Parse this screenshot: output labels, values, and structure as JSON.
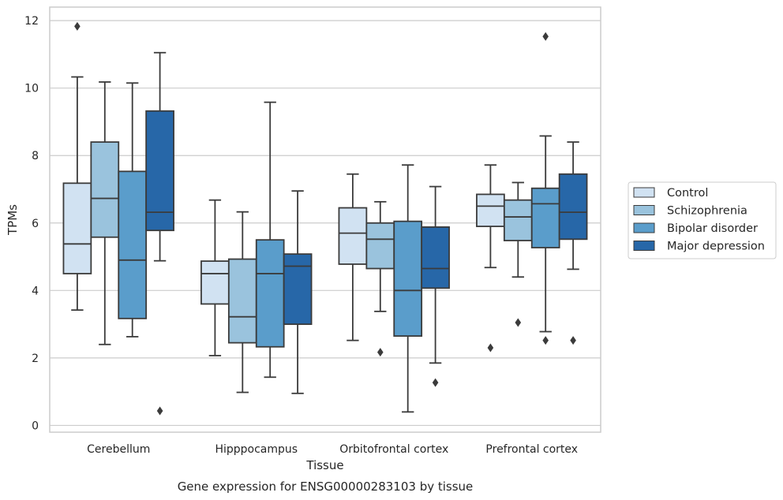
{
  "caption": "Gene expression for ENSG00000283103 by tissue",
  "chart_data": {
    "type": "box",
    "xlabel": "Tissue",
    "ylabel": "TPMs",
    "ylim": [
      -0.2,
      12.4
    ],
    "yticks": [
      0,
      2,
      4,
      6,
      8,
      10,
      12
    ],
    "grid": "horizontal",
    "legend_position": "right",
    "categories": [
      "Cerebellum",
      "Hipppocampus",
      "Orbitofrontal cortex",
      "Prefrontal cortex"
    ],
    "series": [
      {
        "name": "Control",
        "color": "#d1e2f2",
        "boxes": [
          {
            "whislo": 3.42,
            "q1": 4.5,
            "med": 5.38,
            "q3": 7.18,
            "whishi": 10.33,
            "fliers": [
              11.83
            ]
          },
          {
            "whislo": 2.07,
            "q1": 3.6,
            "med": 4.5,
            "q3": 4.87,
            "whishi": 6.68,
            "fliers": []
          },
          {
            "whislo": 2.52,
            "q1": 4.78,
            "med": 5.7,
            "q3": 6.45,
            "whishi": 7.45,
            "fliers": []
          },
          {
            "whislo": 4.68,
            "q1": 5.9,
            "med": 6.5,
            "q3": 6.85,
            "whishi": 7.72,
            "fliers": [
              2.3
            ]
          }
        ]
      },
      {
        "name": "Schizophrenia",
        "color": "#9ac3dd",
        "boxes": [
          {
            "whislo": 2.4,
            "q1": 5.58,
            "med": 6.73,
            "q3": 8.4,
            "whishi": 10.18,
            "fliers": []
          },
          {
            "whislo": 0.98,
            "q1": 2.45,
            "med": 3.22,
            "q3": 4.93,
            "whishi": 6.33,
            "fliers": []
          },
          {
            "whislo": 3.38,
            "q1": 4.65,
            "med": 5.52,
            "q3": 6.0,
            "whishi": 6.63,
            "fliers": [
              2.17
            ]
          },
          {
            "whislo": 4.4,
            "q1": 5.48,
            "med": 6.18,
            "q3": 6.68,
            "whishi": 7.2,
            "fliers": [
              3.05
            ]
          }
        ]
      },
      {
        "name": "Bipolar disorder",
        "color": "#5a9dcb",
        "boxes": [
          {
            "whislo": 2.63,
            "q1": 3.17,
            "med": 4.9,
            "q3": 7.53,
            "whishi": 10.15,
            "fliers": []
          },
          {
            "whislo": 1.43,
            "q1": 2.33,
            "med": 4.5,
            "q3": 5.5,
            "whishi": 9.58,
            "fliers": []
          },
          {
            "whislo": 0.4,
            "q1": 2.65,
            "med": 4.0,
            "q3": 6.05,
            "whishi": 7.72,
            "fliers": []
          },
          {
            "whislo": 2.78,
            "q1": 5.27,
            "med": 6.57,
            "q3": 7.03,
            "whishi": 8.58,
            "fliers": [
              11.53,
              2.52
            ]
          }
        ]
      },
      {
        "name": "Major depression",
        "color": "#2767a8",
        "boxes": [
          {
            "whislo": 4.88,
            "q1": 5.78,
            "med": 6.32,
            "q3": 9.32,
            "whishi": 11.05,
            "fliers": [
              0.43
            ]
          },
          {
            "whislo": 0.95,
            "q1": 3.0,
            "med": 4.72,
            "q3": 5.08,
            "whishi": 6.95,
            "fliers": []
          },
          {
            "whislo": 1.85,
            "q1": 4.07,
            "med": 4.65,
            "q3": 5.88,
            "whishi": 7.08,
            "fliers": [
              1.27
            ]
          },
          {
            "whislo": 4.63,
            "q1": 5.52,
            "med": 6.32,
            "q3": 7.45,
            "whishi": 8.4,
            "fliers": [
              2.52
            ]
          }
        ]
      }
    ]
  }
}
